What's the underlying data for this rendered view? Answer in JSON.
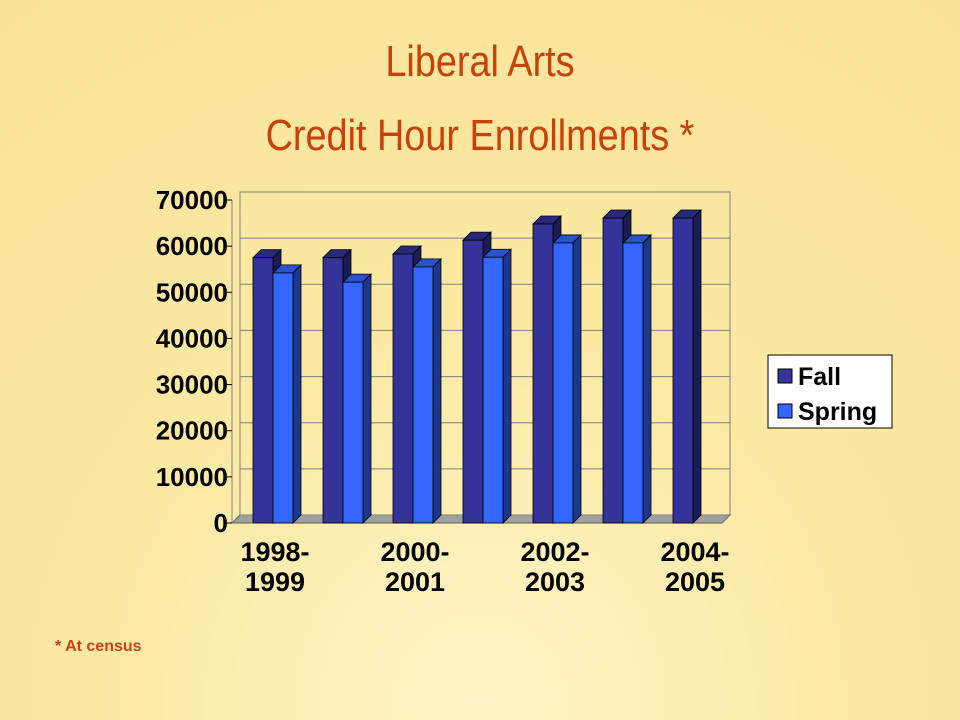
{
  "chart_data": {
    "type": "bar3d",
    "title": "Liberal Arts",
    "subtitle": "Credit Hour Enrollments *",
    "note": "* At census",
    "categories": [
      "1998-1999",
      null,
      "2000-2001",
      null,
      "2002-2003",
      null,
      "2004-2005"
    ],
    "series": [
      {
        "name": "Fall",
        "color": "#333399",
        "values": [
          57500,
          57500,
          58300,
          61300,
          64800,
          66100,
          66100
        ]
      },
      {
        "name": "Spring",
        "color": "#3366ff",
        "values": [
          54200,
          52200,
          55500,
          57600,
          60700,
          60700,
          null
        ]
      }
    ],
    "ylim": [
      0,
      70000
    ],
    "yticks": [
      0,
      10000,
      20000,
      30000,
      40000,
      50000,
      60000,
      70000
    ],
    "grid": true,
    "legend": "right"
  }
}
